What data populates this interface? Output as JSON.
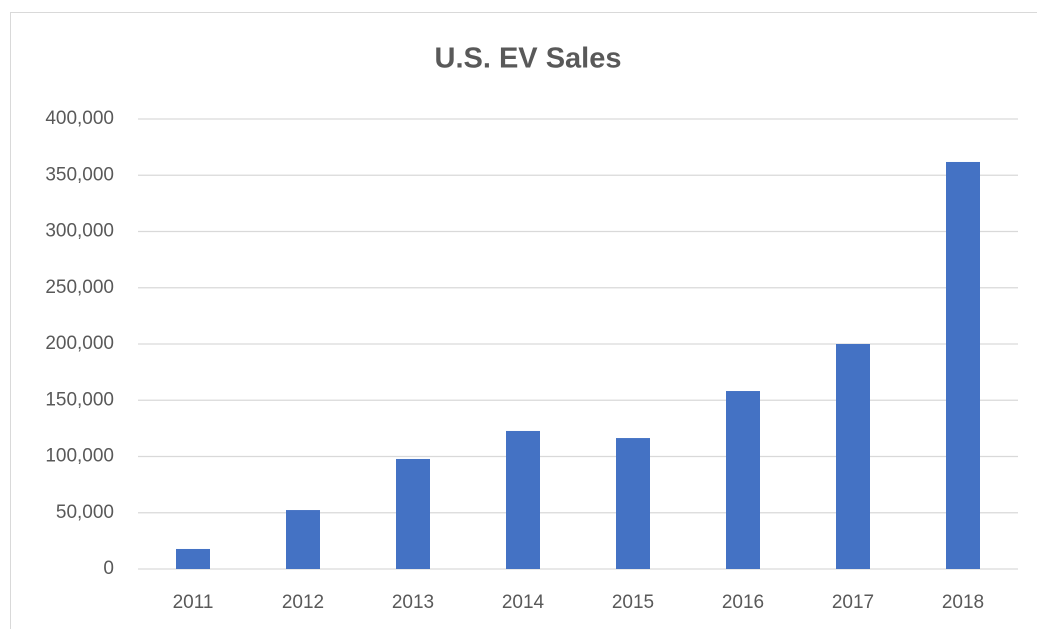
{
  "chart_data": {
    "type": "bar",
    "title": "U.S. EV Sales",
    "categories": [
      "2011",
      "2012",
      "2013",
      "2014",
      "2015",
      "2016",
      "2017",
      "2018"
    ],
    "values": [
      17800,
      52400,
      97800,
      122700,
      116400,
      158200,
      200000,
      361800
    ],
    "color": "#4472c4",
    "ylim": [
      0,
      400000
    ],
    "yticks": [
      0,
      {
        "value": 50000,
        "label": "50,000"
      },
      {
        "value": 100000,
        "label": "100,000"
      },
      {
        "value": 150000,
        "label": "150,000"
      },
      {
        "value": 200000,
        "label": "200,000"
      },
      {
        "value": 250000,
        "label": "250,000"
      },
      {
        "value": 300000,
        "label": "300,000"
      },
      {
        "value": 350000,
        "label": "350,000"
      },
      {
        "value": 400000,
        "label": "400,000"
      }
    ],
    "grid": true
  }
}
